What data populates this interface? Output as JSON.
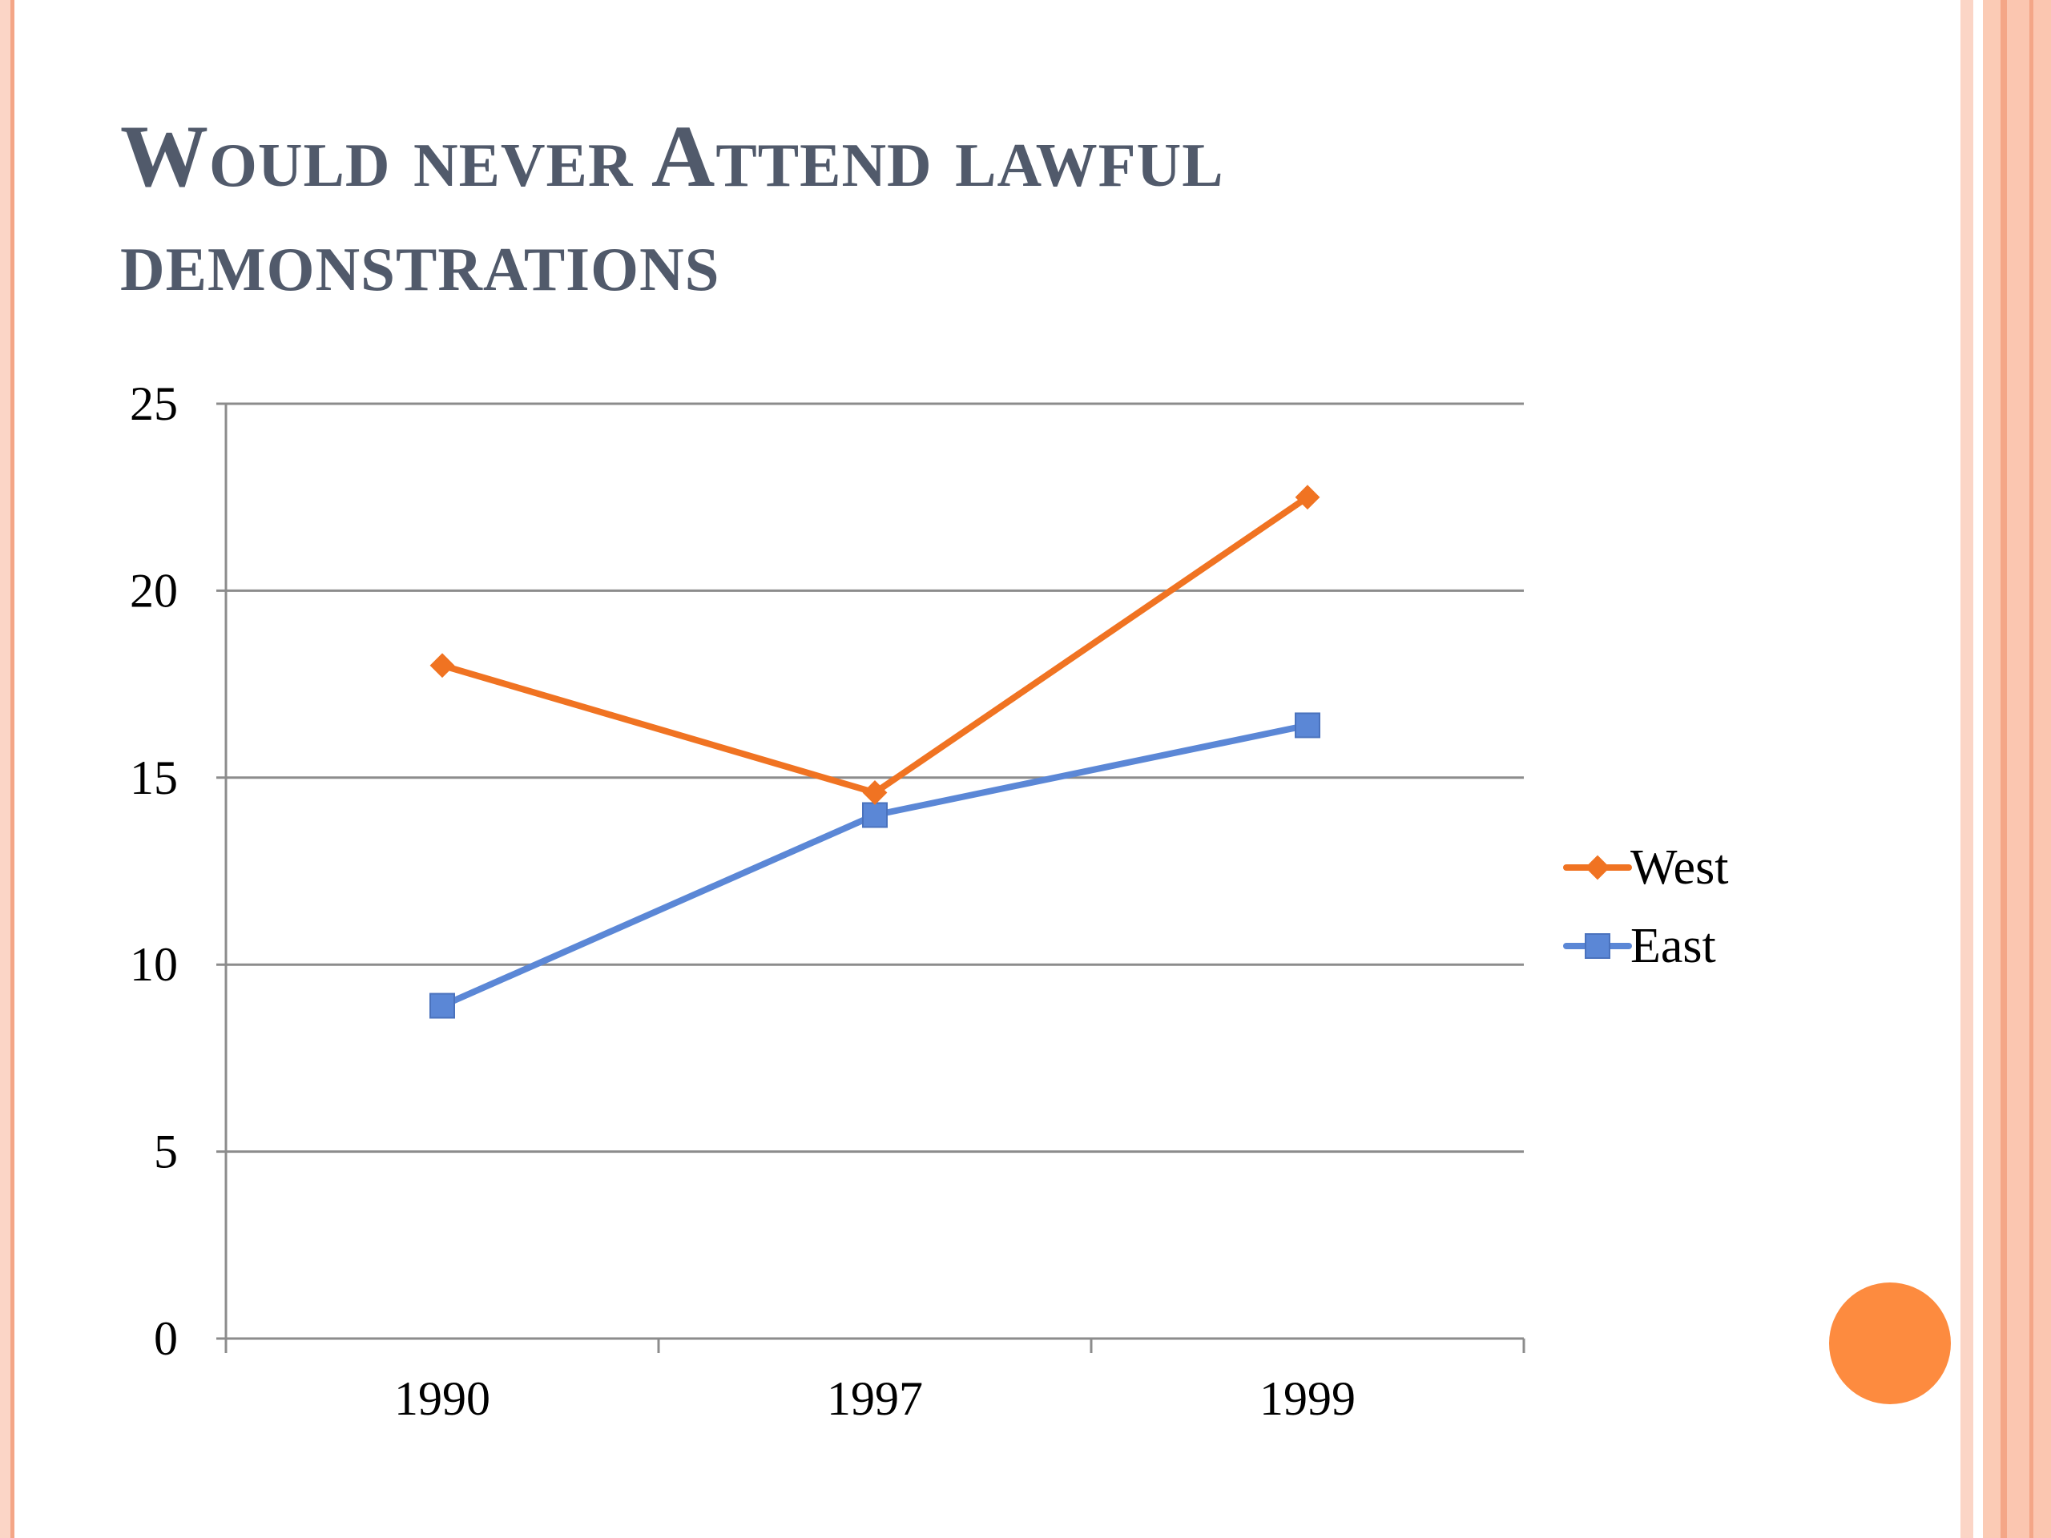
{
  "slide": {
    "title": "Would never Attend lawful demonstrations"
  },
  "colors": {
    "west": "#f07322",
    "east": "#5b87d6",
    "title": "#515a6b",
    "accent_circle": "#fd8b3f",
    "gridline": "#8c8c8c"
  },
  "chart_data": {
    "type": "line",
    "categories": [
      "1990",
      "1997",
      "1999"
    ],
    "series": [
      {
        "name": "West",
        "values": [
          18.0,
          14.6,
          22.5
        ],
        "marker": "diamond"
      },
      {
        "name": "East",
        "values": [
          8.9,
          14.0,
          16.4
        ],
        "marker": "square"
      }
    ],
    "y_ticks": [
      0,
      5,
      10,
      15,
      20,
      25
    ],
    "ylim": [
      0,
      25
    ],
    "grid": true,
    "legend_position": "right",
    "title": "",
    "xlabel": "",
    "ylabel": ""
  }
}
